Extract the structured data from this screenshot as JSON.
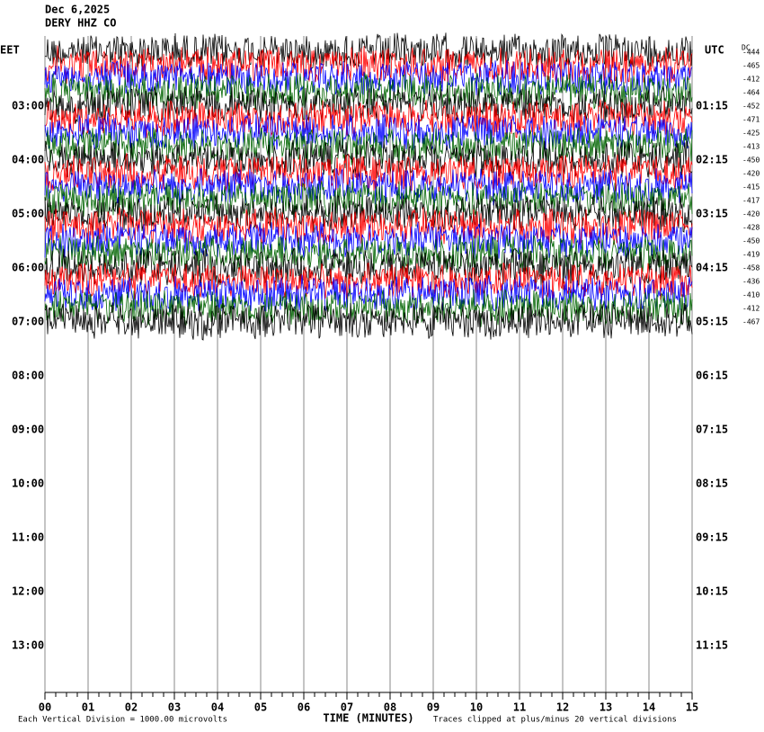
{
  "header": {
    "date": "Dec 6,2025",
    "station": "DERY HHZ CO"
  },
  "left_axis": {
    "title": "EET",
    "labels": [
      "03:00",
      "04:00",
      "05:00",
      "06:00",
      "07:00",
      "08:00",
      "09:00",
      "10:00",
      "11:00",
      "12:00",
      "13:00"
    ]
  },
  "right_axis": {
    "title": "UTC",
    "labels": [
      "01:15",
      "02:15",
      "03:15",
      "04:15",
      "05:15",
      "06:15",
      "07:15",
      "08:15",
      "09:15",
      "10:15",
      "11:15"
    ]
  },
  "dc": {
    "title": "DC",
    "offsets": [
      -444,
      -465,
      -412,
      -464,
      -452,
      -471,
      -425,
      -413,
      -450,
      -420,
      -415,
      -417,
      -420,
      -428,
      -450,
      -419,
      -458,
      -436,
      -410,
      -412,
      -467
    ]
  },
  "x_axis": {
    "title": "TIME (MINUTES)",
    "ticks": [
      "00",
      "01",
      "02",
      "03",
      "04",
      "05",
      "06",
      "07",
      "08",
      "09",
      "10",
      "11",
      "12",
      "13",
      "14",
      "15"
    ]
  },
  "footer": {
    "scale": "Each Vertical Division = 1000.00 microvolts",
    "clip": "Traces clipped at plus/minus 20 vertical divisions"
  },
  "trace_colors": [
    "#000000",
    "#ff0000",
    "#0000ff",
    "#006400"
  ]
}
